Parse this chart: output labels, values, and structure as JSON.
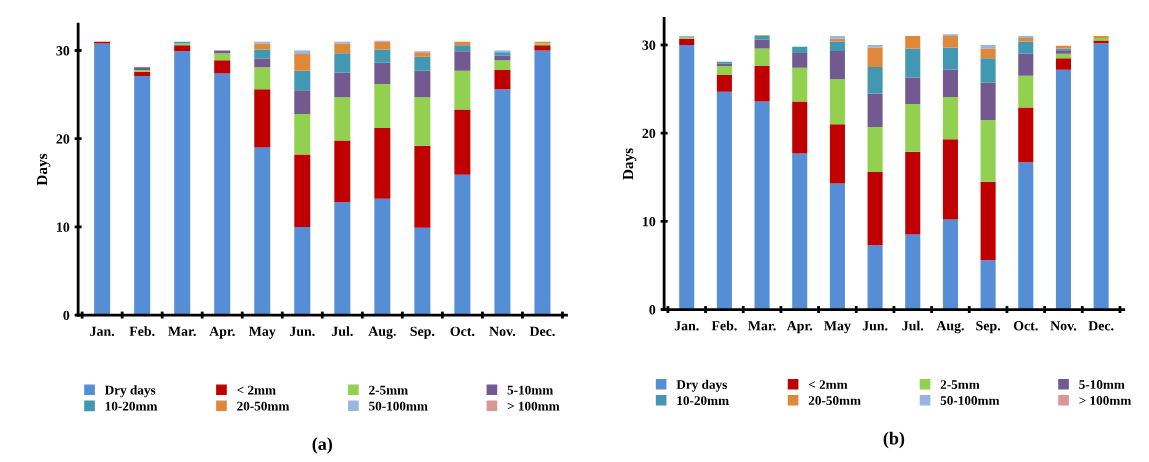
{
  "chart_data": [
    {
      "type": "bar",
      "stacked": true,
      "ylabel": "Days",
      "ylim": [
        0,
        33
      ],
      "yticks": [
        0,
        10,
        20,
        30
      ],
      "legend": "bottom",
      "annotations": [
        "(a)"
      ],
      "categories": [
        "Jan.",
        "Feb.",
        "Mar.",
        "Apr.",
        "May",
        "Jun.",
        "Jul.",
        "Aug.",
        "Sep.",
        "Oct.",
        "Nov.",
        "Dec."
      ],
      "series": [
        {
          "name": "Dry days",
          "color": "#558ed5",
          "values": [
            30.8,
            27.1,
            29.9,
            27.4,
            19.0,
            10.0,
            12.8,
            13.2,
            9.9,
            15.9,
            25.6,
            30.0
          ]
        },
        {
          "name": "< 2mm",
          "color": "#c00000",
          "values": [
            0.2,
            0.5,
            0.7,
            1.5,
            6.6,
            8.2,
            7.0,
            8.0,
            9.3,
            7.4,
            2.2,
            0.6
          ]
        },
        {
          "name": "2-5mm",
          "color": "#92d050",
          "values": [
            0,
            0.2,
            0.2,
            0.8,
            2.5,
            4.6,
            4.9,
            5.0,
            5.5,
            4.4,
            1.1,
            0.2
          ]
        },
        {
          "name": "5-10mm",
          "color": "#72598f",
          "values": [
            0,
            0.3,
            0,
            0.3,
            1.0,
            2.7,
            2.8,
            2.4,
            3.0,
            2.2,
            0.5,
            0
          ]
        },
        {
          "name": "10-20mm",
          "color": "#4198b0",
          "values": [
            0,
            0,
            0.2,
            0,
            1.0,
            2.2,
            2.2,
            1.5,
            1.6,
            0.7,
            0.4,
            0
          ]
        },
        {
          "name": "20-50mm",
          "color": "#e0883a",
          "values": [
            0,
            0,
            0,
            0,
            0.7,
            1.9,
            1.1,
            0.9,
            0.5,
            0.4,
            0,
            0.2
          ]
        },
        {
          "name": "50-100mm",
          "color": "#98b4e0",
          "values": [
            0,
            0,
            0,
            0,
            0.2,
            0.4,
            0.2,
            0.1,
            0.1,
            0,
            0.2,
            0
          ]
        },
        {
          "name": "> 100mm",
          "color": "#d99694",
          "values": [
            0,
            0,
            0,
            0,
            0,
            0,
            0,
            0,
            0,
            0,
            0,
            0
          ]
        }
      ]
    },
    {
      "type": "bar",
      "stacked": true,
      "ylabel": "Days",
      "ylim": [
        0,
        33
      ],
      "yticks": [
        0,
        10,
        20,
        30
      ],
      "legend": "bottom",
      "annotations": [
        "(b)"
      ],
      "categories": [
        "Jan.",
        "Feb.",
        "Mar.",
        "Apr.",
        "May",
        "Jun.",
        "Jul.",
        "Aug.",
        "Sep.",
        "Oct.",
        "Nov.",
        "Dec."
      ],
      "series": [
        {
          "name": "Dry days",
          "color": "#558ed5",
          "values": [
            30.0,
            24.7,
            23.6,
            17.7,
            14.3,
            7.3,
            8.5,
            10.2,
            5.6,
            16.7,
            27.2,
            30.2
          ]
        },
        {
          "name": "< 2mm",
          "color": "#c00000",
          "values": [
            0.7,
            1.9,
            4.0,
            5.9,
            6.7,
            8.3,
            9.4,
            9.1,
            8.9,
            6.2,
            1.3,
            0.3
          ]
        },
        {
          "name": "2-5mm",
          "color": "#92d050",
          "values": [
            0.2,
            1.0,
            2.0,
            3.8,
            5.1,
            5.1,
            5.4,
            4.8,
            7.0,
            3.6,
            0.5,
            0.3
          ]
        },
        {
          "name": "5-10mm",
          "color": "#72598f",
          "values": [
            0,
            0.3,
            1.0,
            1.7,
            3.2,
            3.8,
            3.0,
            3.1,
            4.2,
            2.5,
            0.4,
            0
          ]
        },
        {
          "name": "10-20mm",
          "color": "#4198b0",
          "values": [
            0,
            0.2,
            0.4,
            0.7,
            1.1,
            3.0,
            3.3,
            2.5,
            2.8,
            1.4,
            0.2,
            0
          ]
        },
        {
          "name": "20-50mm",
          "color": "#e0883a",
          "values": [
            0,
            0,
            0.1,
            0,
            0.3,
            2.2,
            1.4,
            1.3,
            1.1,
            0.4,
            0.3,
            0.2
          ]
        },
        {
          "name": "50-100mm",
          "color": "#98b4e0",
          "values": [
            0.1,
            0,
            0,
            0,
            0.3,
            0.3,
            0,
            0.2,
            0.4,
            0.2,
            0,
            0
          ]
        },
        {
          "name": "> 100mm",
          "color": "#d99694",
          "values": [
            0,
            0,
            0,
            0,
            0,
            0,
            0,
            0,
            0,
            0,
            0,
            0
          ]
        }
      ]
    }
  ]
}
